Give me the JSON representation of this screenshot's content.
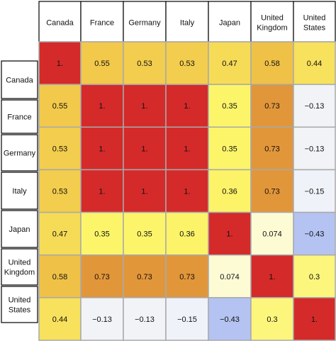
{
  "chart_data": {
    "type": "heatmap",
    "title": "",
    "columns": [
      "Canada",
      "France",
      "Germany",
      "Italy",
      "Japan",
      "United Kingdom",
      "United States"
    ],
    "rows": [
      "Canada",
      "France",
      "Germany",
      "Italy",
      "Japan",
      "United Kingdom",
      "United States"
    ],
    "column_labels": [
      [
        "Canada"
      ],
      [
        "France"
      ],
      [
        "Germany"
      ],
      [
        "Italy"
      ],
      [
        "Japan"
      ],
      [
        "United",
        "Kingdom"
      ],
      [
        "United",
        "States"
      ]
    ],
    "row_labels": [
      [
        "Canada"
      ],
      [
        "France"
      ],
      [
        "Germany"
      ],
      [
        "Italy"
      ],
      [
        "Japan"
      ],
      [
        "United",
        "Kingdom"
      ],
      [
        "United",
        "States"
      ]
    ],
    "values": [
      [
        1,
        0.55,
        0.53,
        0.53,
        0.47,
        0.58,
        0.44
      ],
      [
        0.55,
        1,
        1,
        1,
        0.35,
        0.73,
        -0.13
      ],
      [
        0.53,
        1,
        1,
        1,
        0.35,
        0.73,
        -0.13
      ],
      [
        0.53,
        1,
        1,
        1,
        0.36,
        0.73,
        -0.15
      ],
      [
        0.47,
        0.35,
        0.35,
        0.36,
        1,
        0.074,
        -0.43
      ],
      [
        0.58,
        0.73,
        0.73,
        0.73,
        0.074,
        1,
        0.3
      ],
      [
        0.44,
        -0.13,
        -0.13,
        -0.15,
        -0.43,
        0.3,
        1
      ]
    ],
    "value_labels": [
      [
        "1.",
        "0.55",
        "0.53",
        "0.53",
        "0.47",
        "0.58",
        "0.44"
      ],
      [
        "0.55",
        "1.",
        "1.",
        "1.",
        "0.35",
        "0.73",
        "−0.13"
      ],
      [
        "0.53",
        "1.",
        "1.",
        "1.",
        "0.35",
        "0.73",
        "−0.13"
      ],
      [
        "0.53",
        "1.",
        "1.",
        "1.",
        "0.36",
        "0.73",
        "−0.15"
      ],
      [
        "0.47",
        "0.35",
        "0.35",
        "0.36",
        "1.",
        "0.074",
        "−0.43"
      ],
      [
        "0.58",
        "0.73",
        "0.73",
        "0.73",
        "0.074",
        "1.",
        "0.3"
      ],
      [
        "0.44",
        "−0.13",
        "−0.13",
        "−0.15",
        "−0.43",
        "0.3",
        "1."
      ]
    ],
    "color_scale": {
      "stops": [
        {
          "value": -0.43,
          "color": "#b4c3f2"
        },
        {
          "value": -0.15,
          "color": "#f0f2f9"
        },
        {
          "value": 0.074,
          "color": "#fdfbd4"
        },
        {
          "value": 0.35,
          "color": "#fcf56a"
        },
        {
          "value": 0.55,
          "color": "#f2c94a"
        },
        {
          "value": 0.73,
          "color": "#e2963a"
        },
        {
          "value": 1,
          "color": "#d42a2a"
        }
      ]
    },
    "grid": true,
    "legend": "none"
  }
}
